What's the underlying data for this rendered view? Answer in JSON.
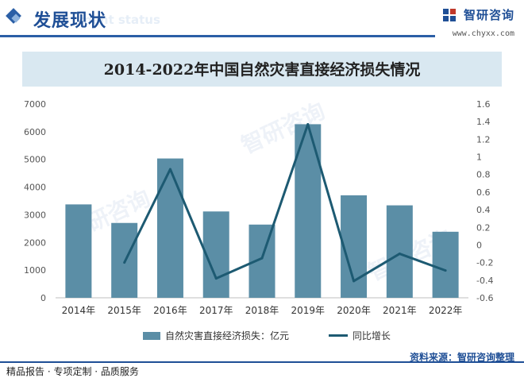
{
  "header": {
    "title": "发展现状",
    "subtitle": "ment status",
    "brand_name": "智研咨询",
    "brand_url": "www.chyxx.com"
  },
  "watermark_text": "智研咨询",
  "colors": {
    "bar": "#5b8ea6",
    "line": "#1d5a72",
    "accent": "#1f4f96",
    "title_band": "#d9e8f1"
  },
  "chart_data": {
    "type": "bar",
    "title": "2014-2022年中国自然灾害直接经济损失情况",
    "categories": [
      "2014年",
      "2015年",
      "2016年",
      "2017年",
      "2018年",
      "2019年",
      "2020年",
      "2021年",
      "2022年"
    ],
    "series": [
      {
        "name": "自然灾害直接经济损失：亿元",
        "type": "bar",
        "axis": "left",
        "values": [
          3374,
          2704,
          5033,
          3119,
          2645,
          6271,
          3702,
          3340,
          2386
        ]
      },
      {
        "name": "同比增长",
        "type": "line",
        "axis": "right",
        "values": [
          null,
          -0.2,
          0.86,
          -0.38,
          -0.15,
          1.37,
          -0.41,
          -0.1,
          -0.29
        ]
      }
    ],
    "y_left": {
      "min": 0,
      "max": 7000,
      "ticks": [
        "0",
        "1000",
        "2000",
        "3000",
        "4000",
        "5000",
        "6000",
        "7000"
      ]
    },
    "y_right": {
      "min": -0.6,
      "max": 1.6,
      "ticks": [
        "-0.6",
        "-0.4",
        "-0.2",
        "0",
        "0.2",
        "0.4",
        "0.6",
        "0.8",
        "1",
        "1.2",
        "1.4",
        "1.6"
      ]
    },
    "legend_position": "bottom",
    "grid": false
  },
  "footer": {
    "left": "精品报告 · 专项定制 · 品质服务",
    "source": "资料来源：智研咨询整理"
  }
}
